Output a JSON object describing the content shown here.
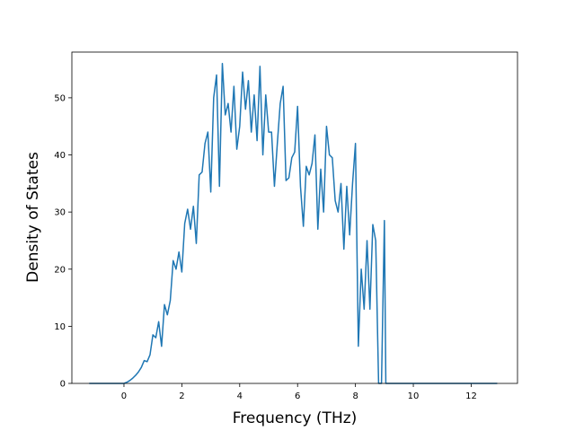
{
  "chart_data": {
    "type": "line",
    "title": "",
    "xlabel": "Frequency (THz)",
    "ylabel": "Density of States",
    "xlim": [
      -1.8,
      13.6
    ],
    "ylim": [
      0,
      58
    ],
    "xticks": [
      0,
      2,
      4,
      6,
      8,
      10,
      12
    ],
    "yticks": [
      0,
      10,
      20,
      30,
      40,
      50
    ],
    "grid": false,
    "legend": "none",
    "series": [
      {
        "color": "#1f77b4",
        "x": [
          -1.2,
          -1.0,
          -0.8,
          -0.6,
          -0.4,
          -0.2,
          0.0,
          0.1,
          0.2,
          0.3,
          0.4,
          0.5,
          0.6,
          0.7,
          0.8,
          0.9,
          1.0,
          1.1,
          1.2,
          1.3,
          1.4,
          1.5,
          1.6,
          1.7,
          1.8,
          1.9,
          2.0,
          2.1,
          2.2,
          2.3,
          2.4,
          2.5,
          2.6,
          2.7,
          2.8,
          2.9,
          3.0,
          3.1,
          3.2,
          3.3,
          3.4,
          3.5,
          3.6,
          3.7,
          3.8,
          3.9,
          4.0,
          4.1,
          4.2,
          4.3,
          4.4,
          4.5,
          4.6,
          4.7,
          4.8,
          4.9,
          5.0,
          5.1,
          5.2,
          5.3,
          5.4,
          5.5,
          5.6,
          5.7,
          5.8,
          5.9,
          6.0,
          6.1,
          6.2,
          6.3,
          6.4,
          6.5,
          6.6,
          6.7,
          6.8,
          6.9,
          7.0,
          7.1,
          7.2,
          7.3,
          7.4,
          7.5,
          7.6,
          7.7,
          7.8,
          7.9,
          8.0,
          8.1,
          8.2,
          8.3,
          8.4,
          8.5,
          8.6,
          8.7,
          8.8,
          8.9,
          9.0,
          9.05,
          9.1,
          9.2,
          9.3,
          9.4,
          9.5,
          9.6,
          9.7,
          9.75,
          9.8,
          9.85,
          9.9,
          10.0,
          10.5,
          11.0,
          11.5,
          12.0,
          12.5,
          12.9
        ],
        "y": [
          0,
          0,
          0,
          0,
          0,
          0,
          0,
          0.2,
          0.5,
          0.9,
          1.4,
          2.0,
          2.8,
          4.0,
          3.8,
          5.0,
          8.5,
          8.0,
          10.8,
          6.5,
          13.8,
          12.0,
          14.5,
          21.5,
          20.0,
          23.0,
          19.5,
          28.0,
          30.5,
          27.0,
          31.0,
          24.5,
          36.5,
          37.0,
          42.0,
          44.0,
          33.5,
          50.0,
          54.0,
          34.5,
          56.0,
          47.0,
          49.0,
          44.0,
          52.0,
          41.0,
          45.0,
          54.5,
          48.0,
          53.0,
          44.0,
          50.5,
          42.5,
          55.5,
          40.0,
          50.5,
          44.0,
          44.0,
          34.5,
          42.0,
          49.0,
          52.0,
          35.5,
          36.0,
          39.5,
          40.5,
          48.5,
          34.5,
          27.5,
          38.0,
          36.5,
          38.5,
          43.5,
          27.0,
          37.5,
          30.0,
          45.0,
          40.0,
          39.5,
          32.0,
          30.0,
          35.0,
          23.5,
          34.5,
          26.0,
          35.0,
          42.0,
          6.5,
          20.0,
          13.0,
          25.0,
          13.0,
          27.8,
          25.0,
          0,
          0,
          28.5,
          0,
          0,
          0,
          0,
          0,
          0,
          0,
          0,
          0,
          0,
          0,
          0,
          0,
          0,
          0,
          0,
          0,
          0,
          0
        ]
      }
    ]
  }
}
